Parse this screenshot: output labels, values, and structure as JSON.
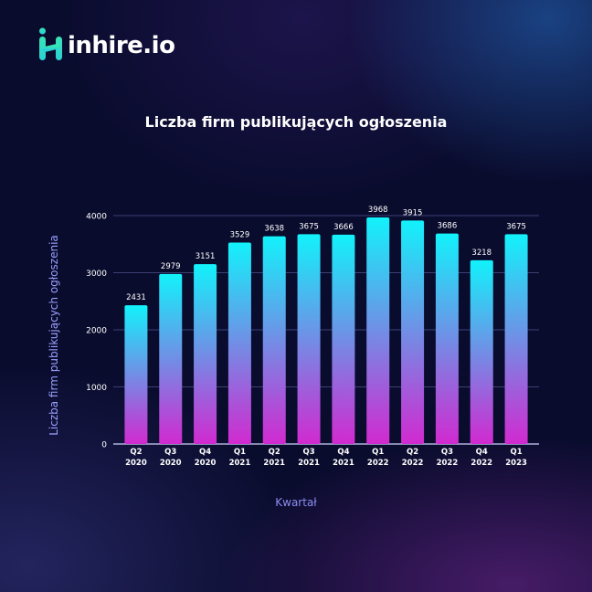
{
  "brand": {
    "name": "inhire.io",
    "colors": {
      "logo_mark": "#2fe0c0",
      "text": "#ffffff"
    }
  },
  "chart_data": {
    "type": "bar",
    "title": "Liczba firm publikujących ogłoszenia",
    "xlabel": "Kwartał",
    "ylabel": "Liczba  firm publikujących ogłoszenia",
    "categories": [
      [
        "Q2",
        "2020"
      ],
      [
        "Q3",
        "2020"
      ],
      [
        "Q4",
        "2020"
      ],
      [
        "Q1",
        "2021"
      ],
      [
        "Q2",
        "2021"
      ],
      [
        "Q3",
        "2021"
      ],
      [
        "Q4",
        "2021"
      ],
      [
        "Q1",
        "2022"
      ],
      [
        "Q2",
        "2022"
      ],
      [
        "Q3",
        "2022"
      ],
      [
        "Q4",
        "2022"
      ],
      [
        "Q1",
        "2023"
      ]
    ],
    "values": [
      2431,
      2979,
      3151,
      3529,
      3638,
      3675,
      3666,
      3968,
      3915,
      3686,
      3218,
      3675
    ],
    "ylim": [
      0,
      4000
    ],
    "yticks": [
      0,
      1000,
      2000,
      3000,
      4000
    ],
    "grid": true,
    "colors": {
      "bar_top": "#12f2fb",
      "bar_bottom": "#d12ad0",
      "grid": "#3b3f72",
      "axis": "#cfd2ff",
      "label": "#ffffff"
    }
  }
}
